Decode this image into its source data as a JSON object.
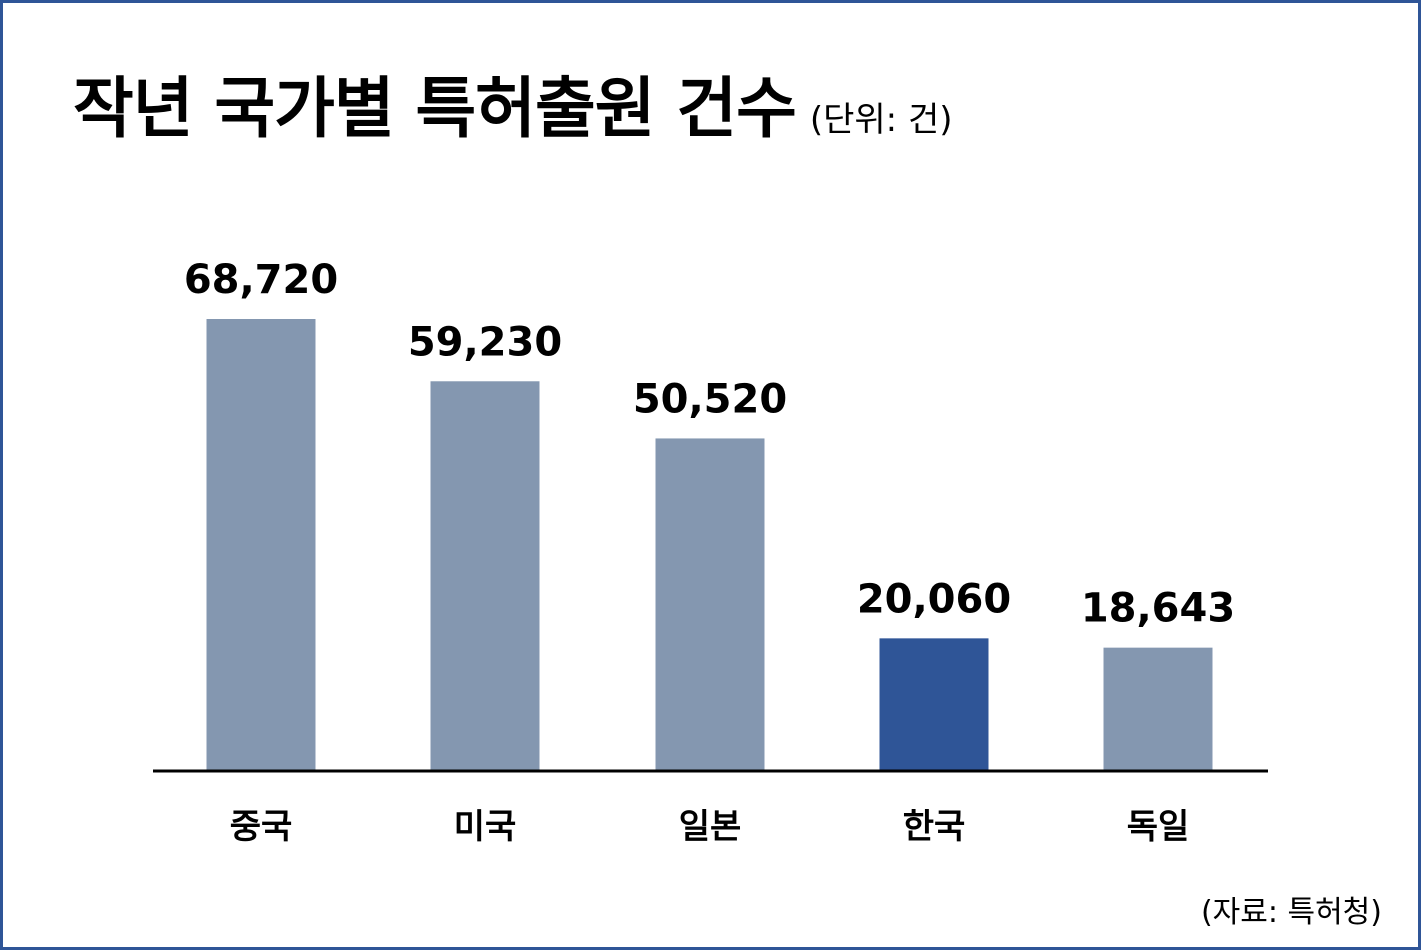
{
  "title": "작년 국가별 특허출원 건수",
  "unit": "(단위: 건)",
  "source": "(자료: 특허청)",
  "colors": {
    "bar_default": "#8497b0",
    "bar_highlight": "#2f5597",
    "frame_border": "#2f5597",
    "axis": "#000000"
  },
  "chart_data": {
    "type": "bar",
    "title": "작년 국가별 특허출원 건수",
    "categories": [
      "중국",
      "미국",
      "일본",
      "한국",
      "독일"
    ],
    "values": [
      68720,
      59230,
      50520,
      20060,
      18643
    ],
    "value_labels": [
      "68,720",
      "59,230",
      "50,520",
      "20,060",
      "18,643"
    ],
    "highlight_category": "한국",
    "ylim": [
      0,
      68720
    ],
    "grid": false,
    "legend": "none",
    "xlabel": "",
    "ylabel": ""
  }
}
